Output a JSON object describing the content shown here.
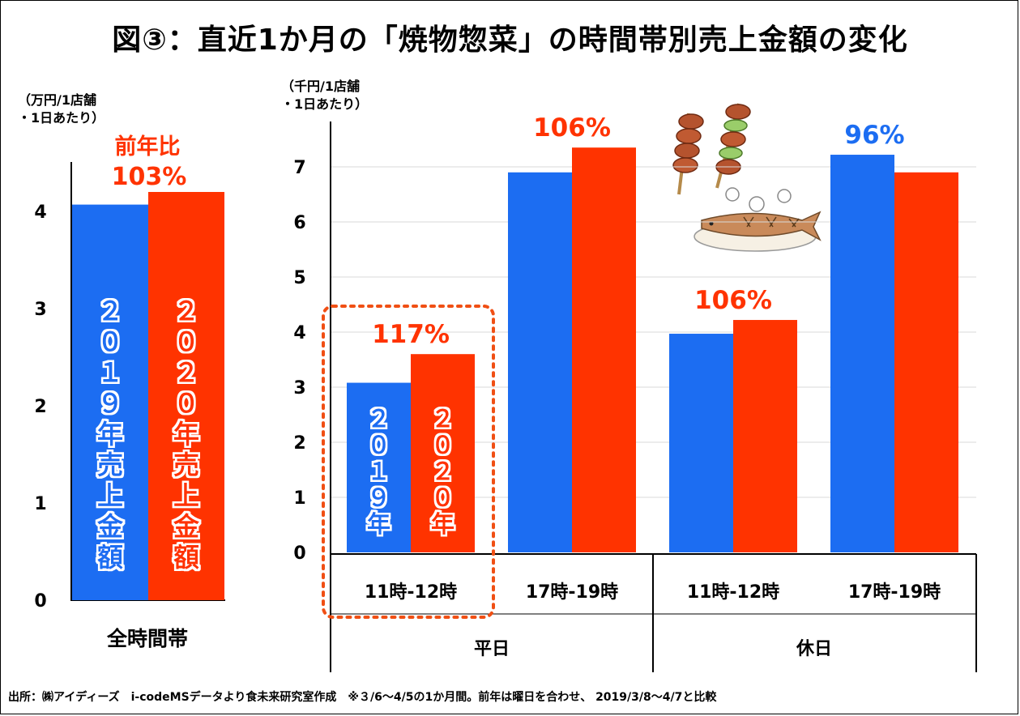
{
  "title": "図③：直近1か月の「焼物惣菜」の時間帯別売上金額の変化",
  "footer": "出所：㈱アイディーズ　i-codeMSデータより食未来研究室作成　※３/6～4/5の1か月間。前年は曜日を合わせ、 2019/3/8～4/7と比較",
  "colors": {
    "y2019": "#1c6df2",
    "y2020": "#ff3300",
    "pct_red": "#ff3300",
    "pct_blue": "#1c6df2",
    "highlight": "#f04f14"
  },
  "chart_data": [
    {
      "type": "bar",
      "unit_label": [
        "（万円/1店舗",
        "・1日あたり）"
      ],
      "categories": [
        "全時間帯"
      ],
      "series": [
        {
          "name": "２０１９年売上金額",
          "values": [
            4.07
          ]
        },
        {
          "name": "２０２０年売上金額",
          "values": [
            4.2
          ]
        }
      ],
      "yticks": [
        "0",
        "1",
        "2",
        "3",
        "4"
      ],
      "ylim": [
        0,
        4.5
      ],
      "annotations": [
        {
          "text": "前年比",
          "color": "red"
        },
        {
          "text": "103%",
          "color": "red"
        }
      ],
      "grid": false
    },
    {
      "type": "bar",
      "unit_label": [
        "（千円/1店舗",
        "・1日あたり）"
      ],
      "groups": [
        "平日",
        "休日"
      ],
      "categories": [
        "11時-12時",
        "17時-19時",
        "11時-12時",
        "17時-19時"
      ],
      "series": [
        {
          "name": "２０１９年",
          "values": [
            3.08,
            6.9,
            3.97,
            7.22
          ]
        },
        {
          "name": "２０２０年",
          "values": [
            3.6,
            7.35,
            4.22,
            6.9
          ]
        }
      ],
      "pct_labels": [
        {
          "text": "117%",
          "color": "red"
        },
        {
          "text": "106%",
          "color": "red"
        },
        {
          "text": "106%",
          "color": "red"
        },
        {
          "text": "96%",
          "color": "blue"
        }
      ],
      "yticks": [
        "0",
        "1",
        "2",
        "3",
        "4",
        "5",
        "6",
        "7"
      ],
      "ylim": [
        0,
        7.8
      ],
      "grid": true,
      "highlighted_category": "11時-12時"
    }
  ]
}
